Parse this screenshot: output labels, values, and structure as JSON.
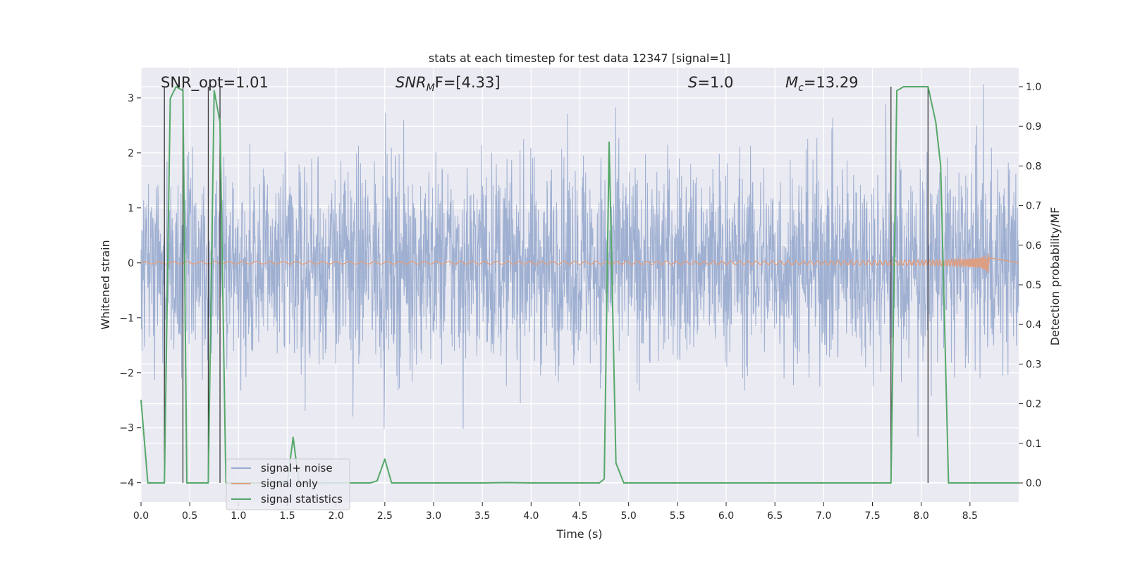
{
  "chart_data": {
    "type": "line",
    "title": "stats at each timestep for test data 12347 [signal=1]",
    "xlabel": "Time (s)",
    "ylabel": "Whitened strain",
    "y2label": "Detection probability/MF",
    "xlim": [
      0.0,
      9.0
    ],
    "ylim": [
      -4.35,
      3.55
    ],
    "y2lim": [
      -0.048,
      1.048
    ],
    "xticks": [
      "0.0",
      "0.5",
      "1.0",
      "1.5",
      "2.0",
      "2.5",
      "3.0",
      "3.5",
      "4.0",
      "4.5",
      "5.0",
      "5.5",
      "6.0",
      "6.5",
      "7.0",
      "7.5",
      "8.0",
      "8.5"
    ],
    "yticks": [
      "3",
      "2",
      "1",
      "0",
      "−1",
      "−2",
      "−3",
      "−4"
    ],
    "y2ticks": [
      "1.0",
      "0.9",
      "0.8",
      "0.7",
      "0.6",
      "0.5",
      "0.4",
      "0.3",
      "0.2",
      "0.1",
      "0.0"
    ],
    "grid": true,
    "legend_position": "lower-left",
    "annotations": [
      {
        "text": "SNR_opt=1.01",
        "x": 0.2
      },
      {
        "text_html": "SNR_MF=[4.33]",
        "base": "SNR",
        "sub": "M",
        "rest": "F=[4.33]",
        "x": 2.6
      },
      {
        "base": "S",
        "rest": "=1.0",
        "x": 5.6
      },
      {
        "base": "M",
        "sub": "c",
        "rest": "=13.29",
        "x": 6.6
      }
    ],
    "vertical_lines_x": [
      0.24,
      0.43,
      0.69,
      0.81,
      7.69,
      8.07
    ],
    "series": [
      {
        "name": "signal+ noise",
        "color": "#9aaccf",
        "axis": "left",
        "description_amplitude": {
          "typical": 1.6,
          "peak": 3.2
        }
      },
      {
        "name": "signal only",
        "color": "#dd9f84",
        "axis": "left",
        "chirp_end_x": 8.7,
        "chirp_peak_amplitude": 0.17
      },
      {
        "name": "signal statistics",
        "color": "#55a868",
        "axis": "right",
        "x": [
          0.0,
          0.07,
          0.24,
          0.3,
          0.36,
          0.43,
          0.47,
          0.69,
          0.75,
          0.81,
          0.87,
          1.5,
          1.56,
          1.62,
          2.35,
          2.42,
          2.5,
          2.57,
          3.5,
          3.75,
          4.0,
          4.7,
          4.75,
          4.8,
          4.87,
          4.95,
          7.69,
          7.75,
          7.82,
          7.95,
          8.07,
          8.15,
          8.2,
          8.28,
          9.0
        ],
        "values": [
          0.21,
          0.0,
          0.0,
          0.97,
          1.0,
          0.99,
          0.0,
          0.0,
          0.99,
          0.91,
          0.0,
          0.0,
          0.115,
          0.0,
          0.0,
          0.005,
          0.06,
          0.0,
          0.0,
          0.001,
          0.0,
          0.0,
          0.01,
          0.86,
          0.05,
          0.0,
          0.0,
          0.99,
          1.0,
          1.0,
          1.0,
          0.91,
          0.8,
          0.0,
          0.0
        ]
      }
    ]
  },
  "legend": {
    "items": [
      {
        "label": "signal+ noise",
        "color": "#9aaccf"
      },
      {
        "label": "signal only",
        "color": "#dd9f84"
      },
      {
        "label": "signal statistics",
        "color": "#55a868"
      }
    ]
  },
  "colors": {
    "background": "#ffffff",
    "plot_area": "#eaeaf2",
    "grid": "#ffffff",
    "vline": "#3a3a3a"
  }
}
